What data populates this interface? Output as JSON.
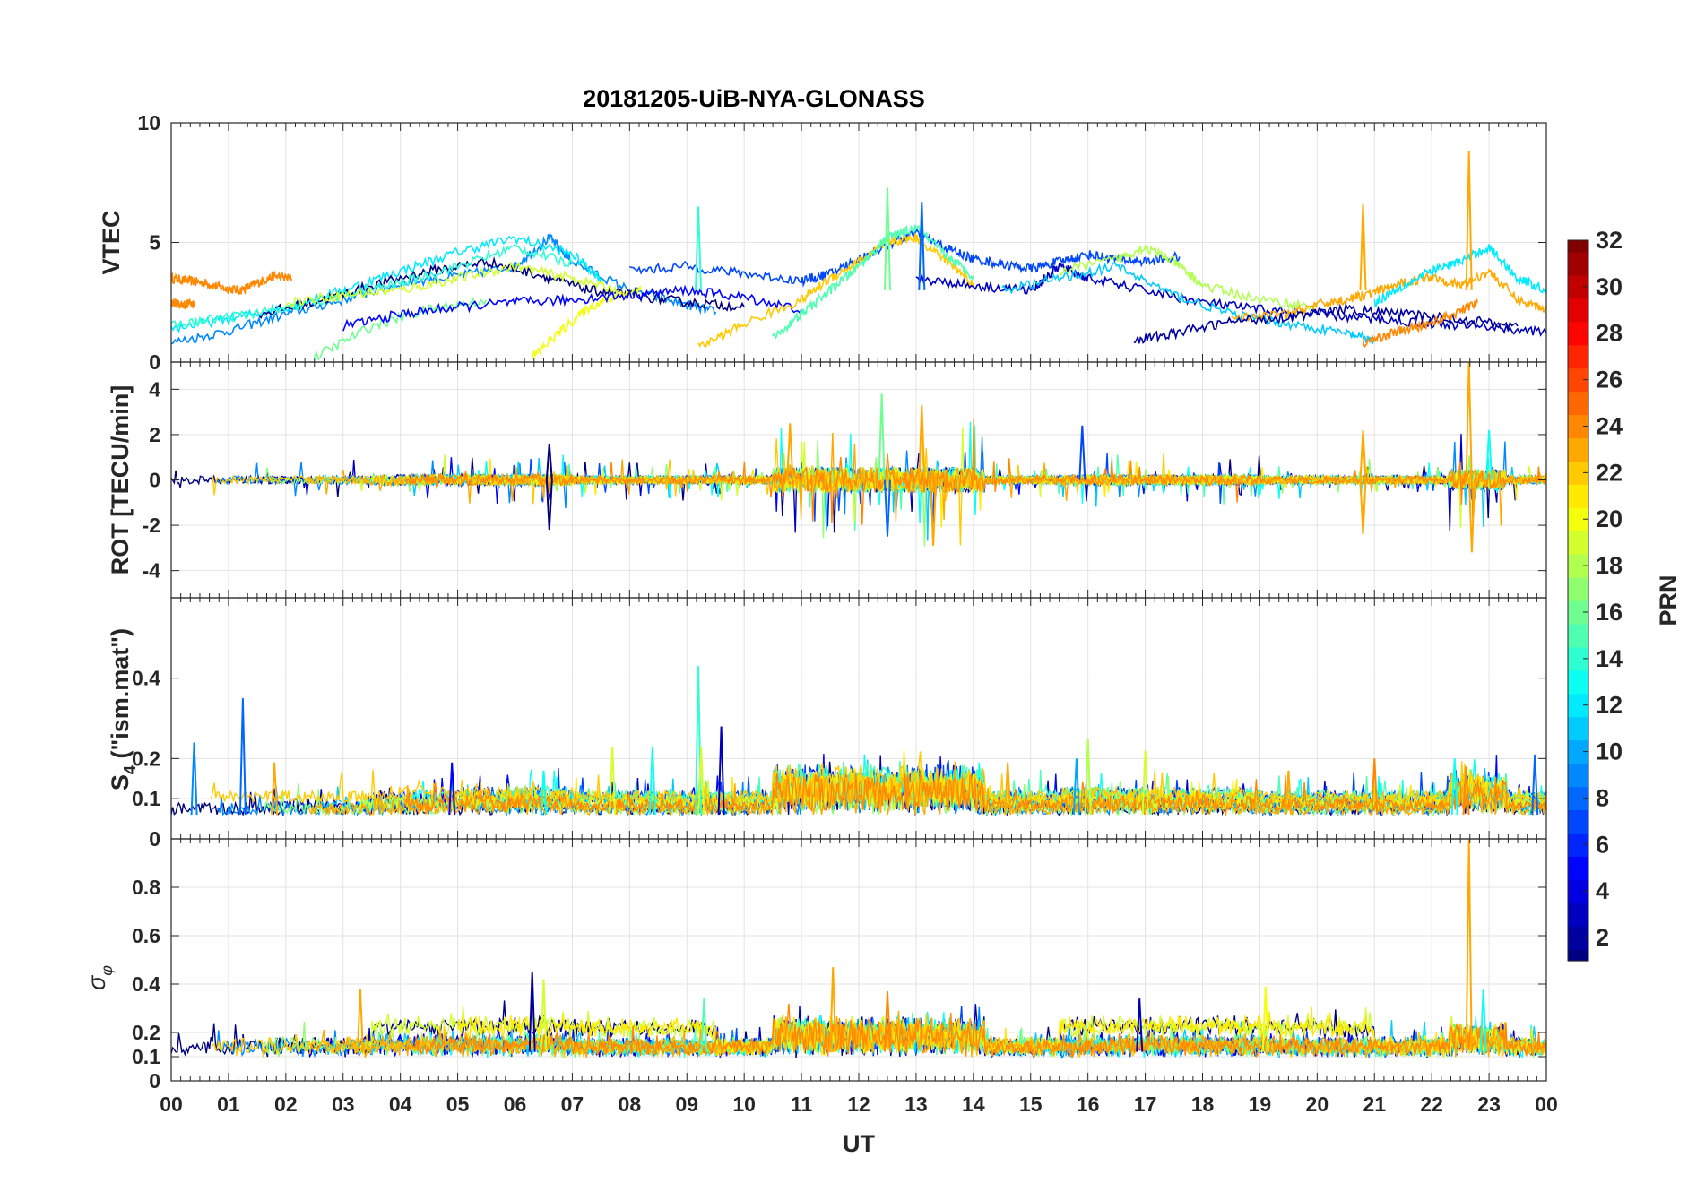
{
  "chart_data": {
    "type": "line",
    "title": "20181205-UiB-NYA-GLONASS",
    "xlabel": "UT",
    "x_ticks": [
      "00",
      "01",
      "02",
      "03",
      "04",
      "05",
      "06",
      "07",
      "08",
      "09",
      "10",
      "11",
      "12",
      "13",
      "14",
      "15",
      "16",
      "17",
      "18",
      "19",
      "20",
      "21",
      "22",
      "23",
      "00"
    ],
    "xlim": [
      0,
      24
    ],
    "grid": true,
    "colorbar": {
      "label": "PRN",
      "range": [
        1,
        32
      ],
      "ticks": [
        "2",
        "4",
        "6",
        "8",
        "10",
        "12",
        "14",
        "16",
        "18",
        "20",
        "22",
        "24",
        "26",
        "28",
        "30",
        "32"
      ],
      "colormap": "jet"
    },
    "panels": [
      {
        "name": "vtec",
        "ylabel": "VTEC",
        "ylim": [
          0,
          10
        ],
        "y_ticks": [
          "0",
          "5",
          "10"
        ],
        "y_tick_values": [
          0,
          5,
          10
        ],
        "baseline": 3,
        "spikes": [
          {
            "x": 9.2,
            "y": 6.5,
            "prn": 14
          },
          {
            "x": 12.5,
            "y": 7.3,
            "prn": 16
          },
          {
            "x": 13.1,
            "y": 6.7,
            "prn": 8
          },
          {
            "x": 20.8,
            "y": 6.6,
            "prn": 23
          },
          {
            "x": 22.65,
            "y": 8.8,
            "prn": 23
          }
        ],
        "series": [
          {
            "prn": 24,
            "x": [
              0.0,
              0.3,
              0.6,
              0.9,
              1.2,
              1.5,
              1.8,
              2.1
            ],
            "y": [
              3.5,
              3.4,
              3.3,
              3.1,
              3.0,
              3.3,
              3.6,
              3.5
            ]
          },
          {
            "prn": 24,
            "x": [
              0.0,
              0.2,
              0.4
            ],
            "y": [
              2.5,
              2.4,
              2.5
            ]
          },
          {
            "prn": 9,
            "x": [
              0.0,
              1.0,
              2.0,
              3.0,
              4.0,
              5.0,
              6.0,
              6.6,
              7.0,
              8.0,
              9.0,
              9.5
            ],
            "y": [
              0.8,
              1.3,
              2.0,
              2.6,
              3.3,
              3.6,
              4.0,
              5.2,
              4.2,
              3.0,
              2.4,
              2.1
            ]
          },
          {
            "prn": 12,
            "x": [
              0.0,
              1.0,
              2.0,
              3.0,
              4.0,
              5.0,
              6.0,
              7.0,
              7.5
            ],
            "y": [
              1.4,
              1.8,
              2.3,
              3.0,
              3.8,
              4.6,
              5.2,
              4.5,
              3.5
            ]
          },
          {
            "prn": 1,
            "x": [
              1.5,
              2.5,
              3.5,
              4.5,
              5.5,
              6.5,
              7.3,
              8.0,
              9.0,
              10.0
            ],
            "y": [
              2.0,
              2.5,
              3.2,
              3.8,
              4.2,
              3.6,
              3.0,
              2.8,
              2.5,
              2.3
            ]
          },
          {
            "prn": 14,
            "x": [
              0.0,
              1.0,
              2.0,
              3.0,
              4.0,
              5.0,
              6.0,
              7.0
            ],
            "y": [
              1.5,
              1.9,
              2.2,
              2.8,
              3.3,
              4.0,
              4.8,
              4.1
            ]
          },
          {
            "prn": 19,
            "x": [
              2.0,
              3.0,
              4.0,
              5.0,
              6.0,
              7.0,
              7.8
            ],
            "y": [
              2.5,
              2.8,
              3.0,
              3.5,
              4.0,
              3.5,
              3.0
            ]
          },
          {
            "prn": 16,
            "x": [
              2.5,
              3.5,
              4.5,
              5.5
            ],
            "y": [
              0.2,
              1.5,
              2.2,
              2.6
            ]
          },
          {
            "prn": 20,
            "x": [
              6.3,
              6.8,
              7.3,
              7.8,
              8.2
            ],
            "y": [
              0.2,
              1.3,
              2.3,
              2.8,
              3.0
            ]
          },
          {
            "prn": 5,
            "x": [
              3.0,
              4.0,
              5.0,
              6.0,
              7.0,
              8.0,
              9.0,
              10.0,
              11.0
            ],
            "y": [
              1.5,
              2.0,
              2.3,
              2.5,
              2.6,
              2.8,
              3.0,
              2.7,
              2.2
            ]
          },
          {
            "prn": 7,
            "x": [
              8.0,
              9.0,
              10.0,
              11.0,
              11.5,
              12.0,
              12.5,
              13.0,
              13.5,
              14.0,
              14.5,
              15.0,
              15.5,
              16.0,
              16.5,
              17.0,
              17.6
            ],
            "y": [
              3.8,
              4.0,
              3.7,
              3.4,
              3.7,
              4.3,
              4.9,
              5.4,
              4.8,
              4.3,
              4.1,
              3.9,
              4.2,
              4.5,
              4.3,
              4.2,
              4.4
            ]
          },
          {
            "prn": 22,
            "x": [
              9.2,
              10.0,
              11.0,
              11.5,
              12.0,
              12.5,
              13.0,
              13.5,
              14.0
            ],
            "y": [
              0.6,
              1.6,
              2.6,
              3.5,
              4.2,
              5.0,
              5.2,
              4.3,
              3.3
            ]
          },
          {
            "prn": 15,
            "x": [
              10.5,
              11.0,
              11.5,
              12.0,
              12.5,
              13.0,
              13.5,
              14.0
            ],
            "y": [
              1.0,
              2.0,
              3.0,
              4.0,
              5.2,
              5.6,
              4.5,
              3.6
            ]
          },
          {
            "prn": 3,
            "x": [
              13.0,
              14.0,
              15.0,
              15.5,
              16.0,
              17.0,
              18.0,
              19.0,
              20.0,
              21.0,
              22.0,
              23.0,
              24.0
            ],
            "y": [
              3.5,
              3.2,
              3.0,
              4.0,
              3.5,
              3.0,
              2.5,
              2.2,
              2.0,
              1.8,
              1.6,
              1.5,
              1.2
            ]
          },
          {
            "prn": 18,
            "x": [
              15.5,
              16.5,
              17.0,
              17.5,
              18.0,
              19.0,
              20.0
            ],
            "y": [
              3.8,
              4.3,
              4.8,
              4.2,
              3.2,
              2.6,
              2.3
            ]
          },
          {
            "prn": 11,
            "x": [
              14.5,
              15.5,
              16.5,
              17.5,
              18.5,
              19.5,
              20.5,
              21.0
            ],
            "y": [
              3.0,
              3.5,
              4.0,
              2.8,
              2.0,
              1.6,
              1.2,
              0.9
            ]
          },
          {
            "prn": 23,
            "x": [
              18.5,
              19.5,
              20.0,
              20.5,
              21.0,
              21.5,
              22.0,
              22.5,
              23.0,
              23.5,
              24.0
            ],
            "y": [
              1.8,
              2.0,
              2.4,
              2.6,
              2.9,
              3.3,
              3.6,
              3.2,
              3.8,
              2.6,
              2.2
            ]
          },
          {
            "prn": 12,
            "x": [
              21.0,
              21.5,
              22.0,
              22.5,
              23.0,
              23.5,
              24.0
            ],
            "y": [
              2.5,
              3.2,
              3.8,
              4.2,
              4.8,
              3.5,
              3.0
            ]
          },
          {
            "prn": 2,
            "x": [
              16.8,
              17.5,
              18.5,
              19.5,
              20.5,
              21.5,
              22.5,
              23.5
            ],
            "y": [
              0.9,
              1.2,
              1.7,
              1.9,
              2.2,
              2.0,
              1.8,
              1.5
            ]
          },
          {
            "prn": 24,
            "x": [
              20.8,
              21.3,
              21.8,
              22.3,
              22.8
            ],
            "y": [
              0.8,
              1.2,
              1.5,
              1.9,
              2.5
            ]
          }
        ]
      },
      {
        "name": "rot",
        "ylabel": "ROT [TECU/min]",
        "ylim": [
          -5.2,
          5.2
        ],
        "y_ticks": [
          "-4",
          "-2",
          "0",
          "2",
          "4"
        ],
        "y_tick_values": [
          -4,
          -2,
          0,
          2,
          4
        ],
        "baseline": 0,
        "spikes": [
          {
            "x": 6.6,
            "y": -2.2,
            "prn": 1
          },
          {
            "x": 6.6,
            "y": 1.6,
            "prn": 1
          },
          {
            "x": 10.8,
            "y": 2.5,
            "prn": 23
          },
          {
            "x": 12.4,
            "y": 3.8,
            "prn": 16
          },
          {
            "x": 12.5,
            "y": -2.5,
            "prn": 8
          },
          {
            "x": 13.1,
            "y": 3.3,
            "prn": 23
          },
          {
            "x": 13.3,
            "y": -2.9,
            "prn": 23
          },
          {
            "x": 15.9,
            "y": 2.4,
            "prn": 7
          },
          {
            "x": 20.8,
            "y": 2.2,
            "prn": 23
          },
          {
            "x": 20.8,
            "y": -2.4,
            "prn": 23
          },
          {
            "x": 22.65,
            "y": 5.3,
            "prn": 23
          },
          {
            "x": 22.7,
            "y": -3.2,
            "prn": 23
          },
          {
            "x": 23.0,
            "y": 2.2,
            "prn": 13
          }
        ]
      },
      {
        "name": "s4",
        "ylabel": "S4 (\"ism.mat\")",
        "ylim": [
          0,
          0.6
        ],
        "y_ticks": [
          "0",
          "0.1",
          "0.2",
          "0.4"
        ],
        "y_tick_values": [
          0,
          0.1,
          0.2,
          0.4
        ],
        "baseline": 0.06,
        "spikes": [
          {
            "x": 0.4,
            "y": 0.24,
            "prn": 9
          },
          {
            "x": 1.25,
            "y": 0.35,
            "prn": 8
          },
          {
            "x": 1.8,
            "y": 0.19,
            "prn": 23
          },
          {
            "x": 4.9,
            "y": 0.19,
            "prn": 5
          },
          {
            "x": 6.5,
            "y": 0.17,
            "prn": 13
          },
          {
            "x": 7.7,
            "y": 0.23,
            "prn": 19
          },
          {
            "x": 8.4,
            "y": 0.23,
            "prn": 13
          },
          {
            "x": 9.2,
            "y": 0.43,
            "prn": 14
          },
          {
            "x": 9.6,
            "y": 0.28,
            "prn": 3
          },
          {
            "x": 9.25,
            "y": 0.23,
            "prn": 19
          },
          {
            "x": 14.6,
            "y": 0.19,
            "prn": 23
          },
          {
            "x": 15.8,
            "y": 0.2,
            "prn": 10
          },
          {
            "x": 16.0,
            "y": 0.25,
            "prn": 18
          },
          {
            "x": 17.0,
            "y": 0.22,
            "prn": 19
          },
          {
            "x": 19.5,
            "y": 0.17,
            "prn": 23
          },
          {
            "x": 21.0,
            "y": 0.2,
            "prn": 24
          },
          {
            "x": 22.4,
            "y": 0.2,
            "prn": 13
          },
          {
            "x": 22.6,
            "y": 0.18,
            "prn": 24
          },
          {
            "x": 23.8,
            "y": 0.21,
            "prn": 8
          }
        ]
      },
      {
        "name": "sigma",
        "ylabel": "σφ",
        "ylim": [
          0,
          1
        ],
        "y_ticks": [
          "0",
          "0.1",
          "0.2",
          "0.4",
          "0.6",
          "0.8"
        ],
        "y_tick_values": [
          0,
          0.1,
          0.2,
          0.4,
          0.6,
          0.8
        ],
        "baseline": 0.12,
        "spikes": [
          {
            "x": 3.3,
            "y": 0.38,
            "prn": 23
          },
          {
            "x": 6.3,
            "y": 0.45,
            "prn": 2
          },
          {
            "x": 6.5,
            "y": 0.42,
            "prn": 19
          },
          {
            "x": 9.3,
            "y": 0.34,
            "prn": 15
          },
          {
            "x": 11.55,
            "y": 0.47,
            "prn": 23
          },
          {
            "x": 12.5,
            "y": 0.37,
            "prn": 24
          },
          {
            "x": 16.9,
            "y": 0.34,
            "prn": 3
          },
          {
            "x": 19.1,
            "y": 0.39,
            "prn": 20
          },
          {
            "x": 22.65,
            "y": 1.0,
            "prn": 23
          },
          {
            "x": 22.9,
            "y": 0.38,
            "prn": 13
          }
        ]
      }
    ]
  }
}
